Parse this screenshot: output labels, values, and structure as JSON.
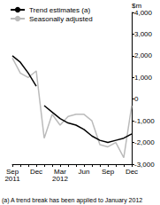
{
  "chart_data": {
    "type": "line",
    "ylabel": "$m",
    "annotations": [
      "(a) A trend break has been applied to January 2012"
    ],
    "categories": [
      "Sep 2011",
      null,
      null,
      "Dec",
      null,
      null,
      "Mar 2012",
      null,
      null,
      "Jun",
      null,
      null,
      "Sep",
      null,
      null,
      "Dec"
    ],
    "series": [
      {
        "name": "Trend estimates (a)",
        "color": "#000000",
        "values": [
          2000,
          1700,
          1200,
          600,
          null,
          null,
          null,
          null,
          null,
          null,
          null,
          null,
          null,
          null,
          null,
          null
        ]
      },
      {
        "name": "Trend estimates (a)",
        "color": "#000000",
        "values": [
          null,
          null,
          null,
          null,
          -300,
          -600,
          -900,
          -1100,
          -1200,
          -1400,
          -1700,
          -1900,
          -2000,
          -1900,
          -1800,
          -1600
        ]
      },
      {
        "name": "Seasonally adjusted",
        "color": "#bbbbbb",
        "values": [
          1900,
          1200,
          1000,
          1300,
          -1800,
          -700,
          -1200,
          -800,
          -700,
          -700,
          -1000,
          -2100,
          -2200,
          -2000,
          -2700,
          -300
        ]
      }
    ],
    "ylim": [
      -3000,
      4000
    ],
    "yticks": [
      -3000,
      -2000,
      -1000,
      0,
      1000,
      2000,
      3000,
      4000
    ],
    "grid": false,
    "legend": "top-left"
  }
}
